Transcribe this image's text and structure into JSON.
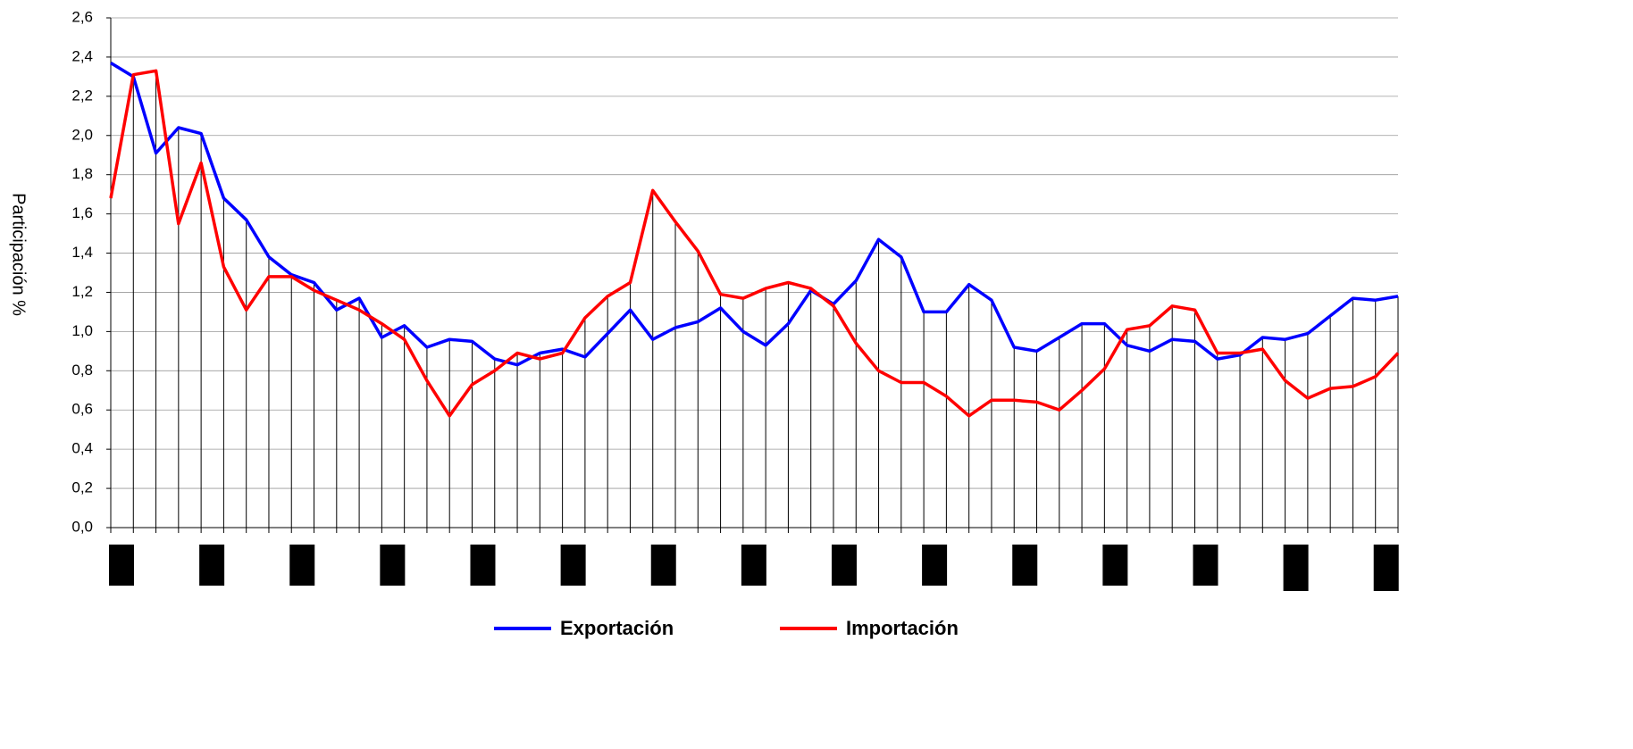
{
  "chart_data": {
    "type": "line",
    "y_label": "Participación  %",
    "categories": [
      null,
      null,
      null,
      null,
      null,
      null,
      null,
      null,
      null,
      null,
      null,
      null,
      null,
      null,
      null,
      null,
      null,
      null,
      null,
      null,
      null,
      null,
      null,
      null,
      null,
      null,
      null,
      null,
      null,
      null,
      null,
      null,
      null,
      null,
      null,
      null,
      null,
      null,
      null,
      null,
      null,
      null,
      null,
      null,
      null,
      null,
      null,
      null,
      null,
      null,
      null,
      null,
      null,
      null,
      null,
      null,
      null,
      null
    ],
    "series": [
      {
        "name": "Exportación",
        "color": "#0000ff",
        "values": [
          2.37,
          2.3,
          1.91,
          2.04,
          2.01,
          1.68,
          1.57,
          1.38,
          1.29,
          1.25,
          1.11,
          1.17,
          0.97,
          1.03,
          0.92,
          0.96,
          0.95,
          0.86,
          0.83,
          0.89,
          0.91,
          0.87,
          0.99,
          1.11,
          0.96,
          1.02,
          1.05,
          1.12,
          1.0,
          0.93,
          1.04,
          1.21,
          1.14,
          1.26,
          1.47,
          1.38,
          1.1,
          1.1,
          1.24,
          1.16,
          0.92,
          0.9,
          0.97,
          1.04,
          1.04,
          0.93,
          0.9,
          0.96,
          0.95,
          0.86,
          0.88,
          0.97,
          0.96,
          0.99,
          1.08,
          1.17,
          1.16,
          1.18
        ]
      },
      {
        "name": "Importación",
        "color": "#ff0000",
        "values": [
          1.68,
          2.31,
          2.33,
          1.55,
          1.86,
          1.33,
          1.11,
          1.28,
          1.28,
          1.21,
          1.16,
          1.11,
          1.04,
          0.96,
          0.75,
          0.57,
          0.73,
          0.8,
          0.89,
          0.86,
          0.89,
          1.07,
          1.18,
          1.25,
          1.72,
          1.56,
          1.41,
          1.19,
          1.17,
          1.22,
          1.25,
          1.22,
          1.13,
          0.94,
          0.8,
          0.74,
          0.74,
          0.67,
          0.57,
          0.65,
          0.65,
          0.64,
          0.6,
          0.7,
          0.81,
          1.01,
          1.03,
          1.13,
          1.11,
          0.89,
          0.89,
          0.91,
          0.75,
          0.66,
          0.71,
          0.72,
          0.77,
          0.89
        ]
      }
    ],
    "ylim": [
      0,
      2.6
    ],
    "yticks": [
      {
        "value": 0,
        "label": "0,0"
      },
      {
        "value": 0.2,
        "label": "0,2"
      },
      {
        "value": 0.4,
        "label": "0,4"
      },
      {
        "value": 0.6,
        "label": "0,6"
      },
      {
        "value": 0.8,
        "label": "0,8"
      },
      {
        "value": 1.0,
        "label": "1,0"
      },
      {
        "value": 1.2,
        "label": "1,2"
      },
      {
        "value": 1.4,
        "label": "1,4"
      },
      {
        "value": 1.6,
        "label": "1,6"
      },
      {
        "value": 1.8,
        "label": "1,8"
      },
      {
        "value": 2.0,
        "label": "2,0"
      },
      {
        "value": 2.2,
        "label": "2,2"
      },
      {
        "value": 2.4,
        "label": "2,4"
      },
      {
        "value": 2.6,
        "label": "2,6"
      }
    ],
    "grid": true,
    "drop_lines": true,
    "legend": "bottom"
  }
}
